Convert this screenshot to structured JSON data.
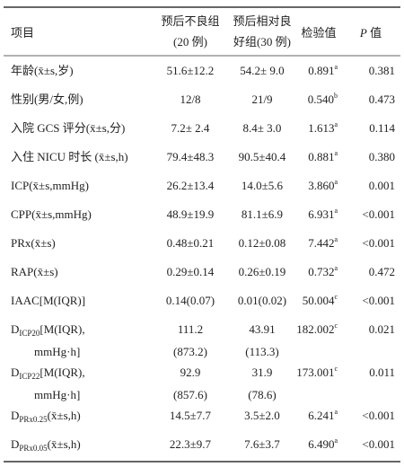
{
  "header": {
    "item": "项目",
    "poor": [
      "预后不良组",
      "(20 例)"
    ],
    "good": [
      "预后相对良",
      "好组(30 例)"
    ],
    "test": "检验值",
    "p": {
      "var": "P",
      "text": " 值"
    }
  },
  "rows": [
    {
      "label": [
        {
          "text": "年龄(x̄±s,岁)"
        }
      ],
      "poor": [
        "51.6±12.2"
      ],
      "good": [
        "54.2± 9.0"
      ],
      "test": {
        "value": "0.891",
        "sup": "a"
      },
      "p": "0.381"
    },
    {
      "label": [
        {
          "text": "性别(男/女,例)"
        }
      ],
      "poor": [
        "12/8"
      ],
      "good": [
        "21/9"
      ],
      "test": {
        "value": "0.540",
        "sup": "b"
      },
      "p": "0.473"
    },
    {
      "label": [
        {
          "text": "入院 GCS 评分(x̄±s,分)"
        }
      ],
      "poor": [
        "7.2± 2.4"
      ],
      "good": [
        "8.4± 3.0"
      ],
      "test": {
        "value": "1.613",
        "sup": "a"
      },
      "p": "0.114"
    },
    {
      "label": [
        {
          "text": "入住 NICU 时长 (x̄±s,h)"
        }
      ],
      "poor": [
        "79.4±48.3"
      ],
      "good": [
        "90.5±40.4"
      ],
      "test": {
        "value": "0.881",
        "sup": "a"
      },
      "p": "0.380"
    },
    {
      "label": [
        {
          "text": "ICP(x̄±s,mmHg)"
        }
      ],
      "poor": [
        "26.2±13.4"
      ],
      "good": [
        "14.0±5.6"
      ],
      "test": {
        "value": "3.860",
        "sup": "a"
      },
      "p": "0.001"
    },
    {
      "label": [
        {
          "text": "CPP(x̄±s,mmHg)"
        }
      ],
      "poor": [
        "48.9±19.9"
      ],
      "good": [
        "81.1±6.9"
      ],
      "test": {
        "value": "6.931",
        "sup": "a"
      },
      "p": "<0.001"
    },
    {
      "label": [
        {
          "text": "PRx(x̄±s)"
        }
      ],
      "poor": [
        "0.48±0.21"
      ],
      "good": [
        "0.12±0.08"
      ],
      "test": {
        "value": "7.442",
        "sup": "a"
      },
      "p": "<0.001"
    },
    {
      "label": [
        {
          "text": "RAP(x̄±s)"
        }
      ],
      "poor": [
        "0.29±0.14"
      ],
      "good": [
        "0.26±0.19"
      ],
      "test": {
        "value": "0.732",
        "sup": "a"
      },
      "p": "0.472"
    },
    {
      "label": [
        {
          "text": "IAAC[M(IQR)]"
        }
      ],
      "poor": [
        "0.14(0.07)"
      ],
      "good": [
        "0.01(0.02)"
      ],
      "test": {
        "value": "50.004",
        "sup": "c"
      },
      "p": "<0.001"
    },
    {
      "label": [
        {
          "text": "D",
          "sub": "ICP20",
          "after": "[M(IQR),"
        },
        {
          "text": "mmHg·h]"
        }
      ],
      "poor": [
        "111.2",
        "(873.2)"
      ],
      "good": [
        "43.91",
        "(113.3)"
      ],
      "test": {
        "value": "182.002",
        "sup": "c"
      },
      "p": "0.021"
    },
    {
      "label": [
        {
          "text": "D",
          "sub": "ICP22",
          "after": "[M(IQR),"
        },
        {
          "text": "mmHg·h]"
        }
      ],
      "poor": [
        "92.9",
        "(857.6)"
      ],
      "good": [
        "31.9",
        "(78.6)"
      ],
      "test": {
        "value": "173.001",
        "sup": "c"
      },
      "p": "0.011"
    },
    {
      "label": [
        {
          "text": "D",
          "sub": "PRx0.25",
          "after": "(x̄±s,h)"
        }
      ],
      "poor": [
        "14.5±7.7"
      ],
      "good": [
        "3.5±2.0"
      ],
      "test": {
        "value": "6.241",
        "sup": "a"
      },
      "p": "<0.001"
    },
    {
      "label": [
        {
          "text": "D",
          "sub": "PRx0.05",
          "after": "(x̄±s,h)"
        }
      ],
      "poor": [
        "22.3±9.7"
      ],
      "good": [
        "7.6±3.7"
      ],
      "test": {
        "value": "6.490",
        "sup": "a"
      },
      "p": "<0.001"
    }
  ]
}
